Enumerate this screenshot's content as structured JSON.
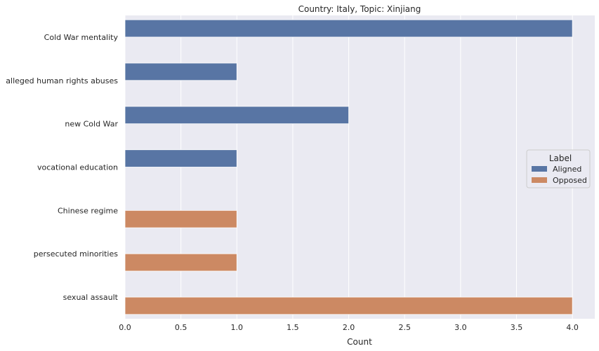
{
  "chart_data": {
    "type": "bar",
    "orientation": "horizontal",
    "title": "Country: Italy, Topic: Xinjiang",
    "xlabel": "Count",
    "ylabel": "",
    "xlim": [
      0,
      4.2
    ],
    "xticks": [
      "0.0",
      "0.5",
      "1.0",
      "1.5",
      "2.0",
      "2.5",
      "3.0",
      "3.5",
      "4.0"
    ],
    "grid": true,
    "legend": {
      "title": "Label",
      "placement": "center-right"
    },
    "categories": [
      "Cold War mentality",
      "alleged human rights abuses",
      "new Cold War",
      "vocational education",
      "Chinese regime",
      "persecuted minorities",
      "sexual assault"
    ],
    "series": [
      {
        "name": "Aligned",
        "color": "#5875a4",
        "values": [
          4,
          1,
          2,
          1,
          null,
          null,
          null
        ]
      },
      {
        "name": "Opposed",
        "color": "#cc8963",
        "values": [
          null,
          null,
          null,
          null,
          1,
          1,
          4
        ]
      }
    ]
  }
}
